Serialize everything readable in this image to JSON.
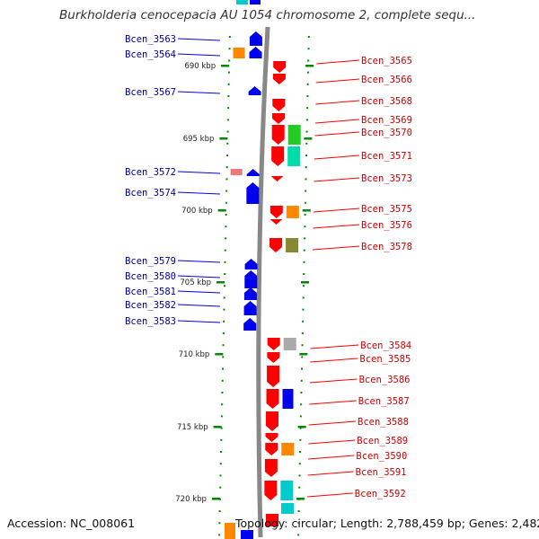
{
  "header": {
    "title": "Burkholderia cenocepacia AU 1054 chromosome 2, complete sequ..."
  },
  "footer": {
    "accession": "Accession: NC_008061",
    "topology": "Topology: circular; Length: 2,788,459 bp; Genes: 2,482"
  },
  "colors": {
    "forward": "#ff0000",
    "reverse": "#0000ee",
    "forward_label": "#cc0000",
    "reverse_label": "#000099",
    "backbone": "#888888",
    "tick": "#008800",
    "cog_orange": "#ff8800",
    "cog_green": "#22cc22",
    "cog_teal": "#00ddaa",
    "cog_cyan": "#00cccc",
    "cog_grey": "#aaaaaa",
    "cog_pink": "#ee7777",
    "cog_olive": "#888833"
  },
  "kbp_labels": [
    "690 kbp",
    "695 kbp",
    "700 kbp",
    "705 kbp",
    "710 kbp",
    "715 kbp",
    "720 kbp"
  ],
  "genes_left": [
    {
      "name": "Bcen_3563",
      "cog": ""
    },
    {
      "name": "Bcen_3564",
      "cog": "orange"
    },
    {
      "name": "Bcen_3567",
      "cog": ""
    },
    {
      "name": "Bcen_3572",
      "cog": "pink"
    },
    {
      "name": "Bcen_3574",
      "cog": ""
    },
    {
      "name": "Bcen_3579",
      "cog": ""
    },
    {
      "name": "Bcen_3580",
      "cog": ""
    },
    {
      "name": "Bcen_3581",
      "cog": ""
    },
    {
      "name": "Bcen_3582",
      "cog": ""
    },
    {
      "name": "Bcen_3583",
      "cog": ""
    }
  ],
  "genes_right": [
    {
      "name": "Bcen_3565",
      "cog": ""
    },
    {
      "name": "Bcen_3566",
      "cog": ""
    },
    {
      "name": "Bcen_3568",
      "cog": ""
    },
    {
      "name": "Bcen_3569",
      "cog": ""
    },
    {
      "name": "Bcen_3570",
      "cog": "green"
    },
    {
      "name": "Bcen_3571",
      "cog": "teal"
    },
    {
      "name": "Bcen_3573",
      "cog": ""
    },
    {
      "name": "Bcen_3575",
      "cog": "orange"
    },
    {
      "name": "Bcen_3576",
      "cog": ""
    },
    {
      "name": "Bcen_3578",
      "cog": "olive"
    },
    {
      "name": "Bcen_3584",
      "cog": "grey"
    },
    {
      "name": "Bcen_3585",
      "cog": ""
    },
    {
      "name": "Bcen_3586",
      "cog": ""
    },
    {
      "name": "Bcen_3587",
      "cog": "blue"
    },
    {
      "name": "Bcen_3588",
      "cog": ""
    },
    {
      "name": "Bcen_3589",
      "cog": ""
    },
    {
      "name": "Bcen_3590",
      "cog": "orange"
    },
    {
      "name": "Bcen_3591",
      "cog": ""
    },
    {
      "name": "Bcen_3592",
      "cog": "cyan"
    }
  ]
}
